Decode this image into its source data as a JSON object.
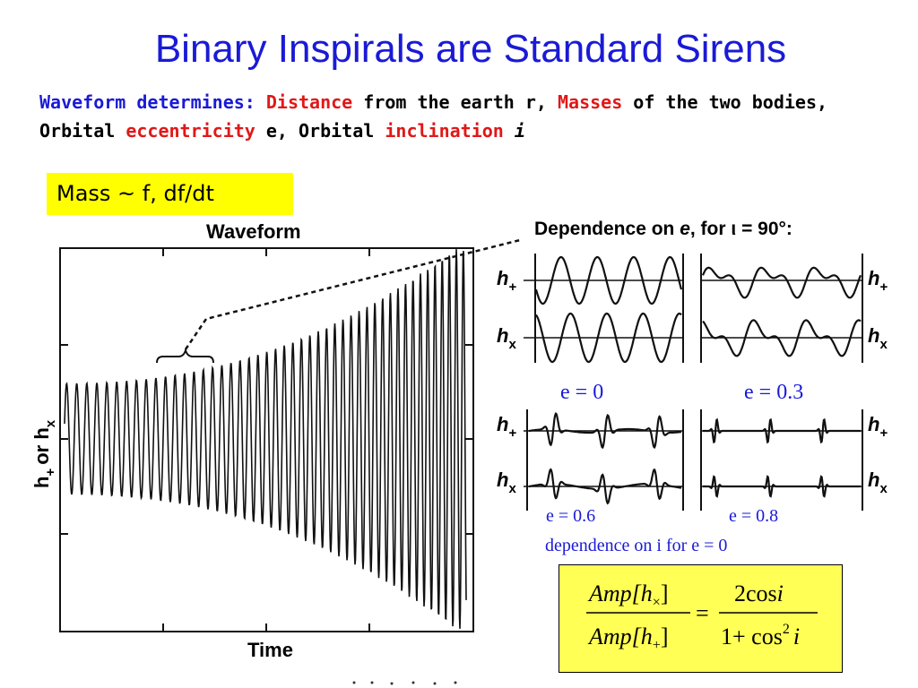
{
  "slide": {
    "title": "Binary Inspirals are Standard Sirens",
    "subtitle": {
      "part1": "Waveform determines:",
      "part2": "Distance",
      "part3": "from the earth r,",
      "part4": "Masses",
      "part5": "of the two bodies, Orbital",
      "part6": "eccentricity",
      "part7": "e, Orbital",
      "part8": "inclination",
      "part9": "i"
    },
    "mass_box": "Mass ~ f, df/dt",
    "colors": {
      "title": "#1a1ad6",
      "highlight": "#e01818",
      "box": "#ffff00"
    }
  },
  "waveform_plot": {
    "title": "Waveform",
    "xlabel": "Time",
    "ylabel_main": "h",
    "ylabel_plus": "+",
    "ylabel_or": "or h",
    "ylabel_x": "x"
  },
  "dependence_panel": {
    "heading_pre": "Dependence on ",
    "heading_e": "e",
    "heading_post": ", for ",
    "heading_iota": "ι",
    "heading_end": " = 90°:",
    "h_label": "h",
    "plus_sub": "+",
    "cross_sub": "x"
  },
  "eccentricity_labels": {
    "e0": "e = 0",
    "e03": "e = 0.3",
    "e06": "e = 0.6",
    "e08": "e = 0.8"
  },
  "inclination_note": "dependence on i for e = 0",
  "formula": {
    "num_left": "Amp[h",
    "num_left_sub": "×",
    "num_left_close": "]",
    "den_left": "Amp[h",
    "den_left_sub": "+",
    "den_left_close": "]",
    "equals": "=",
    "num_right": "2cos",
    "num_right_i": "i",
    "den_right_pre": "1+ cos",
    "den_right_sup": "2",
    "den_right_i": "i"
  }
}
